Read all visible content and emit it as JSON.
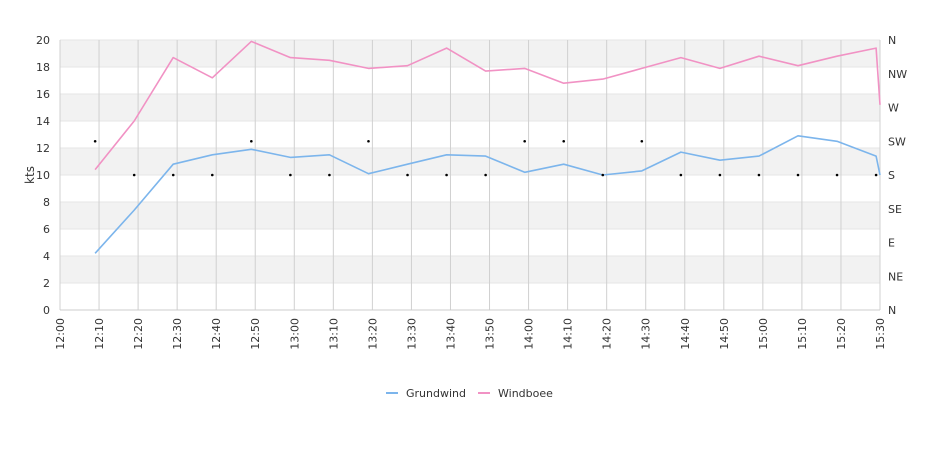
{
  "chart_data": {
    "type": "line",
    "ylabel": "kts",
    "ylim": [
      0,
      20
    ],
    "y_ticks": [
      0,
      2,
      4,
      6,
      8,
      10,
      12,
      14,
      16,
      18,
      20
    ],
    "y2_ticks": [
      "N",
      "NE",
      "E",
      "SE",
      "S",
      "SW",
      "W",
      "NW",
      "N"
    ],
    "x_ticks": [
      "12:00",
      "12:10",
      "12:20",
      "12:30",
      "12:40",
      "12:50",
      "13:00",
      "13:10",
      "13:20",
      "13:30",
      "13:40",
      "13:50",
      "14:00",
      "14:10",
      "14:20",
      "14:30",
      "14:40",
      "14:50",
      "15:00",
      "15:10",
      "15:20",
      "15:30"
    ],
    "grid": true,
    "legend_position": "bottom",
    "series": [
      {
        "name": "Grundwind",
        "color": "#7cb5ec",
        "points": [
          [
            "12:09",
            4.2
          ],
          [
            "12:19",
            7.4
          ],
          [
            "12:29",
            10.8
          ],
          [
            "12:39",
            11.5
          ],
          [
            "12:49",
            11.9
          ],
          [
            "12:59",
            11.3
          ],
          [
            "13:09",
            11.5
          ],
          [
            "13:19",
            10.1
          ],
          [
            "13:29",
            10.8
          ],
          [
            "13:39",
            11.5
          ],
          [
            "13:49",
            11.4
          ],
          [
            "13:59",
            10.2
          ],
          [
            "14:09",
            10.8
          ],
          [
            "14:19",
            10.0
          ],
          [
            "14:29",
            10.3
          ],
          [
            "14:39",
            11.7
          ],
          [
            "14:49",
            11.1
          ],
          [
            "14:59",
            11.4
          ],
          [
            "15:09",
            12.9
          ],
          [
            "15:19",
            12.5
          ],
          [
            "15:29",
            11.4
          ],
          [
            "15:30",
            10.0
          ]
        ]
      },
      {
        "name": "Windboee",
        "color": "#f192c4",
        "points": [
          [
            "12:09",
            10.4
          ],
          [
            "12:19",
            14.0
          ],
          [
            "12:29",
            18.7
          ],
          [
            "12:39",
            17.2
          ],
          [
            "12:49",
            19.9
          ],
          [
            "12:59",
            18.7
          ],
          [
            "13:09",
            18.5
          ],
          [
            "13:19",
            17.9
          ],
          [
            "13:29",
            18.1
          ],
          [
            "13:39",
            19.4
          ],
          [
            "13:49",
            17.7
          ],
          [
            "13:59",
            17.9
          ],
          [
            "14:09",
            16.8
          ],
          [
            "14:19",
            17.1
          ],
          [
            "14:29",
            17.9
          ],
          [
            "14:39",
            18.7
          ],
          [
            "14:49",
            17.9
          ],
          [
            "14:59",
            18.8
          ],
          [
            "15:09",
            18.1
          ],
          [
            "15:19",
            18.8
          ],
          [
            "15:29",
            19.4
          ],
          [
            "15:30",
            15.2
          ]
        ]
      }
    ],
    "direction_points": [
      [
        "12:09",
        "SW"
      ],
      [
        "12:19",
        "S"
      ],
      [
        "12:29",
        "S"
      ],
      [
        "12:39",
        "S"
      ],
      [
        "12:49",
        "SW"
      ],
      [
        "12:59",
        "S"
      ],
      [
        "13:09",
        "S"
      ],
      [
        "13:19",
        "SW"
      ],
      [
        "13:29",
        "S"
      ],
      [
        "13:39",
        "S"
      ],
      [
        "13:49",
        "S"
      ],
      [
        "13:59",
        "SW"
      ],
      [
        "14:09",
        "SW"
      ],
      [
        "14:19",
        "S"
      ],
      [
        "14:29",
        "SW"
      ],
      [
        "14:39",
        "S"
      ],
      [
        "14:49",
        "S"
      ],
      [
        "14:59",
        "S"
      ],
      [
        "15:09",
        "S"
      ],
      [
        "15:19",
        "S"
      ],
      [
        "15:29",
        "S"
      ]
    ]
  }
}
